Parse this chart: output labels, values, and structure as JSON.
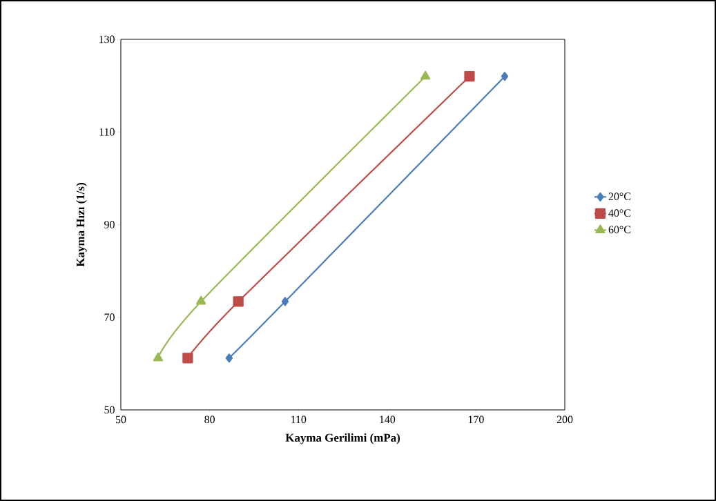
{
  "chart_data": {
    "type": "line",
    "xlabel": "Kayma Gerilimi (mPa)",
    "ylabel": "Kayma Hızı (1/s)",
    "xlim": [
      50,
      200
    ],
    "xticks": [
      50,
      80,
      110,
      140,
      170,
      200
    ],
    "ylim": [
      50,
      130
    ],
    "yticks": [
      50,
      70,
      90,
      110,
      130
    ],
    "grid": false,
    "legend": "right",
    "line_style": "solid",
    "series": [
      {
        "name": "20°C",
        "color": "#4a7ebb",
        "marker": "diamond",
        "x": [
          86.6,
          105.5,
          179.7
        ],
        "values": [
          61.2,
          73.4,
          122
        ]
      },
      {
        "name": "40°C",
        "color": "#be4b48",
        "marker": "square",
        "x": [
          72.6,
          89.7,
          167.8
        ],
        "values": [
          61.2,
          73.4,
          122
        ]
      },
      {
        "name": "60°C",
        "color": "#98b954",
        "marker": "triangle",
        "x": [
          62.6,
          77.1,
          152.9
        ],
        "values": [
          61.2,
          73.4,
          122
        ]
      }
    ]
  }
}
